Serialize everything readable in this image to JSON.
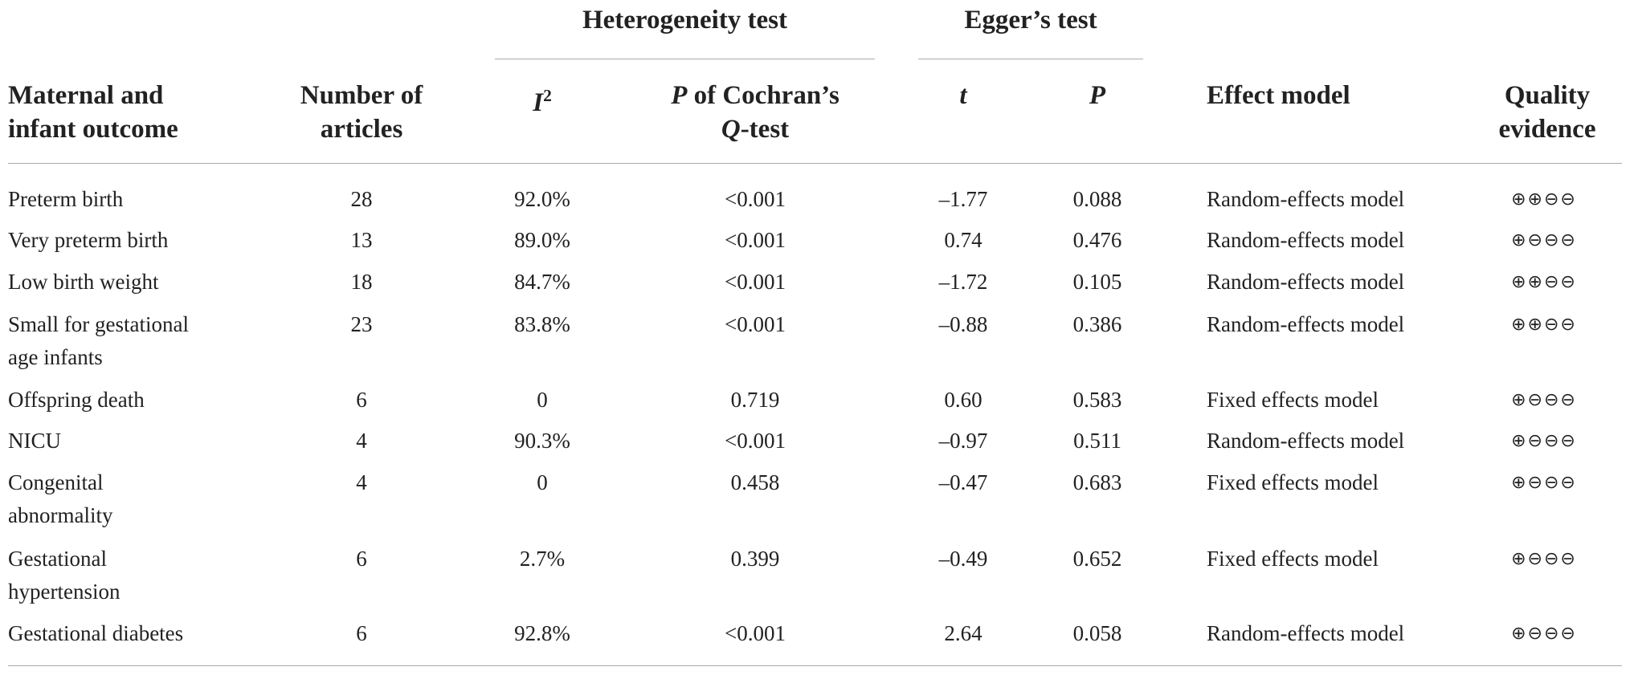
{
  "table": {
    "groups": [
      "Heterogeneity test",
      "Egger’s test"
    ],
    "columns": [
      [
        "Maternal and",
        "infant outcome"
      ],
      [
        "Number of",
        "articles"
      ],
      [
        "I",
        "2"
      ],
      [
        "P",
        " of Cochran’s",
        "Q",
        "-test"
      ],
      [
        "t"
      ],
      [
        "P"
      ],
      [
        "Effect model"
      ],
      [
        "Quality",
        "evidence"
      ]
    ],
    "rows": [
      [
        "Preterm birth",
        "28",
        "92.0%",
        "<0.001",
        "–1.77",
        "0.088",
        "Random-effects model",
        "⊕⊕⊖⊖"
      ],
      [
        "Very preterm birth",
        "13",
        "89.0%",
        "<0.001",
        "0.74",
        "0.476",
        "Random-effects model",
        "⊕⊖⊖⊖"
      ],
      [
        "Low birth weight",
        "18",
        "84.7%",
        "<0.001",
        "–1.72",
        "0.105",
        "Random-effects model",
        "⊕⊕⊖⊖"
      ],
      [
        "Small for gestational age infants",
        "23",
        "83.8%",
        "<0.001",
        "–0.88",
        "0.386",
        "Random-effects model",
        "⊕⊕⊖⊖"
      ],
      [
        "Offspring death",
        "6",
        "0",
        "0.719",
        "0.60",
        "0.583",
        "Fixed effects model",
        "⊕⊖⊖⊖"
      ],
      [
        "NICU",
        "4",
        "90.3%",
        "<0.001",
        "–0.97",
        "0.511",
        "Random-effects model",
        "⊕⊖⊖⊖"
      ],
      [
        "Congenital abnormality",
        "4",
        "0",
        "0.458",
        "–0.47",
        "0.683",
        "Fixed effects model",
        "⊕⊖⊖⊖"
      ],
      [
        "Gestational hypertension",
        "6",
        "2.7%",
        "0.399",
        "–0.49",
        "0.652",
        "Fixed effects model",
        "⊕⊖⊖⊖"
      ],
      [
        "Gestational diabetes",
        "6",
        "92.8%",
        "<0.001",
        "2.64",
        "0.058",
        "Random-effects model",
        "⊕⊖⊖⊖"
      ]
    ]
  }
}
